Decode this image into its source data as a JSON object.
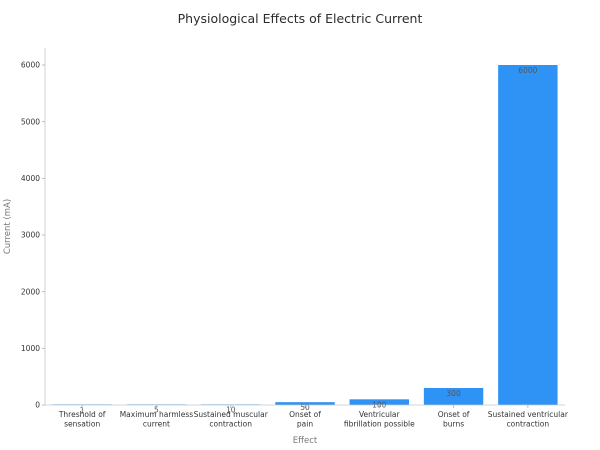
{
  "chart_data": {
    "type": "bar",
    "title": "Physiological Effects of Electric Current",
    "xlabel": "Effect",
    "ylabel": "Current (mA)",
    "categories": [
      [
        "Threshold of",
        "sensation"
      ],
      [
        "Maximum harmless",
        "current"
      ],
      [
        "Sustained muscular",
        "contraction"
      ],
      [
        "Onset of",
        "pain"
      ],
      [
        "Ventricular",
        "fibrillation possible"
      ],
      [
        "Onset of",
        "burns"
      ],
      [
        "Sustained ventricular",
        "contraction"
      ]
    ],
    "values": [
      1,
      5,
      10,
      50,
      100,
      300,
      6000
    ],
    "data_labels": [
      "1",
      "5",
      "10",
      "50",
      "100",
      "300",
      "6000"
    ],
    "ylim": [
      0,
      6300
    ],
    "yticks": [
      0,
      1000,
      2000,
      3000,
      4000,
      5000,
      6000
    ],
    "bar_color": "#2f93f5",
    "grid": false,
    "legend": "none"
  }
}
